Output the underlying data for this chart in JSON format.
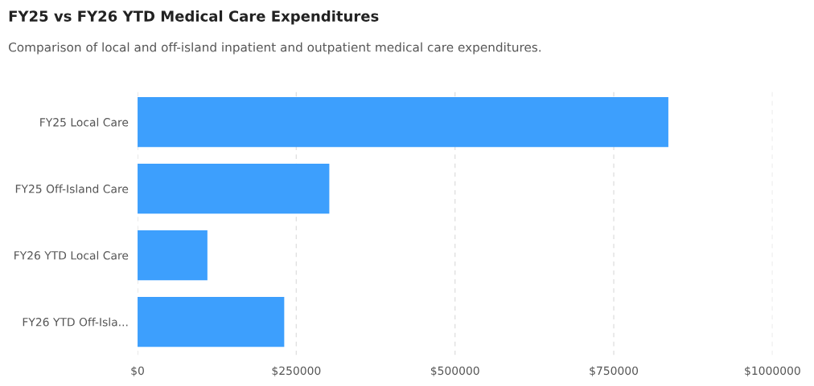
{
  "chart_data": {
    "type": "bar",
    "orientation": "horizontal",
    "title": "FY25 vs FY26 YTD Medical Care Expenditures",
    "subtitle": "Comparison of local and off-island inpatient and outpatient medical care expenditures.",
    "categories": [
      "FY25 Local Care",
      "FY25 Off-Island Care",
      "FY26 YTD Local Care",
      "FY26 YTD Off-Isla..."
    ],
    "values": [
      836000,
      302000,
      110000,
      231000
    ],
    "color": "#3d9ffd",
    "xlim": [
      0,
      1000000
    ],
    "xticks": [
      {
        "value": 0,
        "label": "$0"
      },
      {
        "value": 250000,
        "label": "$250000"
      },
      {
        "value": 500000,
        "label": "$500000"
      },
      {
        "value": 750000,
        "label": "$750000"
      },
      {
        "value": 1000000,
        "label": "$1000000"
      }
    ],
    "grid": "x",
    "legend": false
  }
}
